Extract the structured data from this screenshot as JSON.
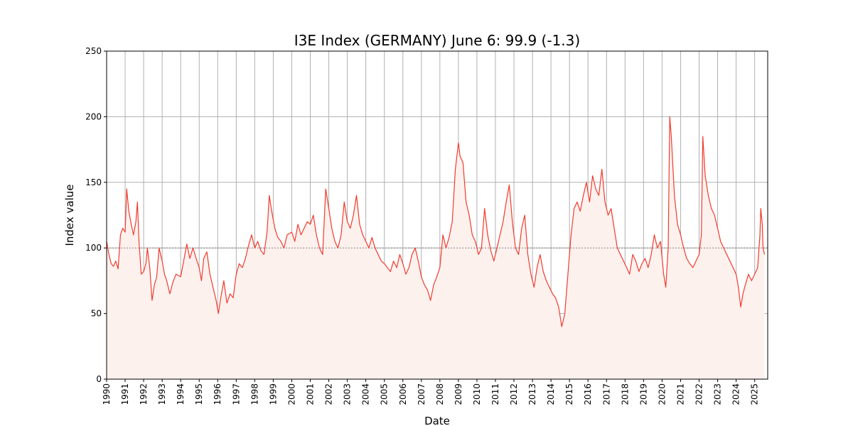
{
  "chart_data": {
    "type": "line",
    "title": "I3E Index (GERMANY) June 6: 99.9 (-1.3)",
    "xlabel": "Date",
    "ylabel": "Index value",
    "xlim": [
      "1990-01-01",
      "2025-09-15"
    ],
    "ylim": [
      0,
      250
    ],
    "yticks": [
      0,
      50,
      100,
      150,
      200,
      250
    ],
    "xticks": [
      "1990",
      "1991",
      "1992",
      "1993",
      "1994",
      "1995",
      "1996",
      "1997",
      "1998",
      "1999",
      "2000",
      "2001",
      "2002",
      "2003",
      "2004",
      "2005",
      "2006",
      "2007",
      "2008",
      "2009",
      "2010",
      "2011",
      "2012",
      "2013",
      "2014",
      "2015",
      "2016",
      "2017",
      "2018",
      "2019",
      "2020",
      "2021",
      "2022",
      "2023",
      "2024",
      "2025"
    ],
    "grid": true,
    "reference_line": {
      "y": 100,
      "style": "dotted",
      "color": "#808080"
    },
    "fill_below": true,
    "colors": {
      "line": "#f03c2e",
      "fill": "#fdf1ee",
      "grid": "#b0b0b0",
      "reference": "#808080"
    },
    "series": [
      {
        "points": [
          [
            "1990-01-01",
            105
          ],
          [
            "1990-02-15",
            95
          ],
          [
            "1990-04-01",
            88
          ],
          [
            "1990-05-15",
            86
          ],
          [
            "1990-07-01",
            90
          ],
          [
            "1990-08-15",
            84
          ],
          [
            "1990-10-01",
            110
          ],
          [
            "1990-11-15",
            115
          ],
          [
            "1991-01-01",
            112
          ],
          [
            "1991-02-01",
            145
          ],
          [
            "1991-03-15",
            128
          ],
          [
            "1991-05-01",
            118
          ],
          [
            "1991-06-15",
            110
          ],
          [
            "1991-08-01",
            120
          ],
          [
            "1991-09-01",
            135
          ],
          [
            "1991-10-01",
            105
          ],
          [
            "1991-11-15",
            80
          ],
          [
            "1992-01-01",
            82
          ],
          [
            "1992-02-15",
            88
          ],
          [
            "1992-03-15",
            100
          ],
          [
            "1992-05-01",
            85
          ],
          [
            "1992-06-15",
            60
          ],
          [
            "1992-08-01",
            72
          ],
          [
            "1992-09-15",
            78
          ],
          [
            "1992-11-01",
            100
          ],
          [
            "1993-01-01",
            90
          ],
          [
            "1993-02-15",
            80
          ],
          [
            "1993-04-01",
            75
          ],
          [
            "1993-06-01",
            65
          ],
          [
            "1993-08-01",
            74
          ],
          [
            "1993-10-01",
            80
          ],
          [
            "1994-01-01",
            78
          ],
          [
            "1994-03-01",
            90
          ],
          [
            "1994-05-01",
            103
          ],
          [
            "1994-07-01",
            92
          ],
          [
            "1994-09-01",
            100
          ],
          [
            "1994-11-01",
            92
          ],
          [
            "1995-01-01",
            85
          ],
          [
            "1995-02-15",
            75
          ],
          [
            "1995-04-01",
            92
          ],
          [
            "1995-06-01",
            97
          ],
          [
            "1995-08-01",
            80
          ],
          [
            "1995-10-01",
            70
          ],
          [
            "1995-12-01",
            60
          ],
          [
            "1996-01-15",
            50
          ],
          [
            "1996-03-01",
            62
          ],
          [
            "1996-05-01",
            75
          ],
          [
            "1996-07-01",
            58
          ],
          [
            "1996-09-01",
            65
          ],
          [
            "1996-11-01",
            62
          ],
          [
            "1997-01-01",
            80
          ],
          [
            "1997-03-01",
            88
          ],
          [
            "1997-05-01",
            85
          ],
          [
            "1997-07-01",
            92
          ],
          [
            "1997-09-01",
            102
          ],
          [
            "1997-11-01",
            110
          ],
          [
            "1998-01-01",
            100
          ],
          [
            "1998-03-01",
            105
          ],
          [
            "1998-05-01",
            98
          ],
          [
            "1998-07-01",
            95
          ],
          [
            "1998-09-01",
            112
          ],
          [
            "1998-10-15",
            140
          ],
          [
            "1998-12-01",
            128
          ],
          [
            "1999-02-01",
            115
          ],
          [
            "1999-04-01",
            108
          ],
          [
            "1999-06-01",
            105
          ],
          [
            "1999-08-01",
            100
          ],
          [
            "1999-10-01",
            110
          ],
          [
            "2000-01-01",
            112
          ],
          [
            "2000-03-01",
            105
          ],
          [
            "2000-05-01",
            118
          ],
          [
            "2000-07-01",
            110
          ],
          [
            "2000-09-01",
            115
          ],
          [
            "2000-11-01",
            120
          ],
          [
            "2001-01-01",
            118
          ],
          [
            "2001-03-01",
            125
          ],
          [
            "2001-05-01",
            110
          ],
          [
            "2001-07-01",
            100
          ],
          [
            "2001-09-01",
            95
          ],
          [
            "2001-11-01",
            145
          ],
          [
            "2002-01-01",
            130
          ],
          [
            "2002-03-01",
            115
          ],
          [
            "2002-05-01",
            105
          ],
          [
            "2002-07-01",
            100
          ],
          [
            "2002-09-01",
            110
          ],
          [
            "2002-11-01",
            135
          ],
          [
            "2003-01-01",
            120
          ],
          [
            "2003-03-01",
            115
          ],
          [
            "2003-05-01",
            125
          ],
          [
            "2003-07-01",
            140
          ],
          [
            "2003-09-01",
            118
          ],
          [
            "2003-11-01",
            110
          ],
          [
            "2004-01-01",
            105
          ],
          [
            "2004-03-01",
            100
          ],
          [
            "2004-05-01",
            108
          ],
          [
            "2004-07-01",
            100
          ],
          [
            "2004-09-01",
            95
          ],
          [
            "2004-11-01",
            90
          ],
          [
            "2005-01-01",
            88
          ],
          [
            "2005-03-01",
            85
          ],
          [
            "2005-05-01",
            82
          ],
          [
            "2005-07-01",
            90
          ],
          [
            "2005-09-01",
            85
          ],
          [
            "2005-11-01",
            95
          ],
          [
            "2006-01-01",
            88
          ],
          [
            "2006-03-01",
            80
          ],
          [
            "2006-05-01",
            85
          ],
          [
            "2006-07-01",
            95
          ],
          [
            "2006-09-01",
            100
          ],
          [
            "2006-11-01",
            90
          ],
          [
            "2007-01-01",
            78
          ],
          [
            "2007-03-01",
            72
          ],
          [
            "2007-05-01",
            68
          ],
          [
            "2007-07-01",
            60
          ],
          [
            "2007-09-01",
            72
          ],
          [
            "2007-11-01",
            78
          ],
          [
            "2008-01-01",
            85
          ],
          [
            "2008-03-01",
            110
          ],
          [
            "2008-05-01",
            100
          ],
          [
            "2008-07-01",
            108
          ],
          [
            "2008-09-01",
            120
          ],
          [
            "2008-11-01",
            160
          ],
          [
            "2009-01-01",
            180
          ],
          [
            "2009-02-01",
            170
          ],
          [
            "2009-04-01",
            165
          ],
          [
            "2009-06-01",
            135
          ],
          [
            "2009-08-01",
            125
          ],
          [
            "2009-10-01",
            110
          ],
          [
            "2009-12-01",
            105
          ],
          [
            "2010-02-01",
            95
          ],
          [
            "2010-04-01",
            100
          ],
          [
            "2010-06-01",
            130
          ],
          [
            "2010-08-01",
            110
          ],
          [
            "2010-10-01",
            98
          ],
          [
            "2010-12-01",
            90
          ],
          [
            "2011-02-01",
            100
          ],
          [
            "2011-04-01",
            110
          ],
          [
            "2011-06-01",
            120
          ],
          [
            "2011-08-01",
            135
          ],
          [
            "2011-10-01",
            148
          ],
          [
            "2011-12-01",
            120
          ],
          [
            "2012-02-01",
            100
          ],
          [
            "2012-04-01",
            95
          ],
          [
            "2012-06-01",
            115
          ],
          [
            "2012-08-01",
            125
          ],
          [
            "2012-10-01",
            95
          ],
          [
            "2012-12-01",
            80
          ],
          [
            "2013-02-01",
            70
          ],
          [
            "2013-04-01",
            85
          ],
          [
            "2013-06-01",
            95
          ],
          [
            "2013-08-01",
            82
          ],
          [
            "2013-10-01",
            75
          ],
          [
            "2013-12-01",
            70
          ],
          [
            "2014-02-01",
            65
          ],
          [
            "2014-04-01",
            62
          ],
          [
            "2014-06-01",
            55
          ],
          [
            "2014-08-01",
            40
          ],
          [
            "2014-10-01",
            50
          ],
          [
            "2014-12-01",
            80
          ],
          [
            "2015-02-01",
            110
          ],
          [
            "2015-04-01",
            130
          ],
          [
            "2015-06-01",
            135
          ],
          [
            "2015-08-01",
            128
          ],
          [
            "2015-10-01",
            140
          ],
          [
            "2015-12-01",
            150
          ],
          [
            "2016-02-01",
            135
          ],
          [
            "2016-04-01",
            155
          ],
          [
            "2016-06-01",
            145
          ],
          [
            "2016-08-01",
            140
          ],
          [
            "2016-10-01",
            160
          ],
          [
            "2016-12-01",
            135
          ],
          [
            "2017-02-01",
            125
          ],
          [
            "2017-04-01",
            130
          ],
          [
            "2017-06-01",
            115
          ],
          [
            "2017-08-01",
            100
          ],
          [
            "2017-10-01",
            95
          ],
          [
            "2017-12-01",
            90
          ],
          [
            "2018-02-01",
            85
          ],
          [
            "2018-04-01",
            80
          ],
          [
            "2018-06-01",
            95
          ],
          [
            "2018-08-01",
            90
          ],
          [
            "2018-10-01",
            82
          ],
          [
            "2018-12-01",
            88
          ],
          [
            "2019-02-01",
            92
          ],
          [
            "2019-04-01",
            85
          ],
          [
            "2019-06-01",
            95
          ],
          [
            "2019-08-01",
            110
          ],
          [
            "2019-10-01",
            100
          ],
          [
            "2019-12-01",
            105
          ],
          [
            "2020-02-01",
            80
          ],
          [
            "2020-03-15",
            70
          ],
          [
            "2020-05-01",
            100
          ],
          [
            "2020-06-01",
            200
          ],
          [
            "2020-07-01",
            185
          ],
          [
            "2020-09-01",
            140
          ],
          [
            "2020-11-01",
            118
          ],
          [
            "2021-01-01",
            110
          ],
          [
            "2021-03-01",
            100
          ],
          [
            "2021-05-01",
            92
          ],
          [
            "2021-07-01",
            88
          ],
          [
            "2021-09-01",
            85
          ],
          [
            "2021-11-01",
            90
          ],
          [
            "2022-01-01",
            95
          ],
          [
            "2022-02-15",
            110
          ],
          [
            "2022-03-15",
            185
          ],
          [
            "2022-05-01",
            155
          ],
          [
            "2022-07-01",
            140
          ],
          [
            "2022-09-01",
            130
          ],
          [
            "2022-11-01",
            125
          ],
          [
            "2023-01-01",
            115
          ],
          [
            "2023-03-01",
            105
          ],
          [
            "2023-05-01",
            100
          ],
          [
            "2023-07-01",
            95
          ],
          [
            "2023-09-01",
            90
          ],
          [
            "2023-11-01",
            85
          ],
          [
            "2024-01-01",
            80
          ],
          [
            "2024-02-15",
            70
          ],
          [
            "2024-04-01",
            55
          ],
          [
            "2024-05-15",
            65
          ],
          [
            "2024-07-01",
            72
          ],
          [
            "2024-09-01",
            80
          ],
          [
            "2024-11-01",
            75
          ],
          [
            "2025-01-01",
            80
          ],
          [
            "2025-03-01",
            85
          ],
          [
            "2025-04-15",
            110
          ],
          [
            "2025-05-01",
            130
          ],
          [
            "2025-06-01",
            118
          ],
          [
            "2025-06-15",
            100
          ],
          [
            "2025-07-15",
            95
          ]
        ]
      }
    ]
  }
}
